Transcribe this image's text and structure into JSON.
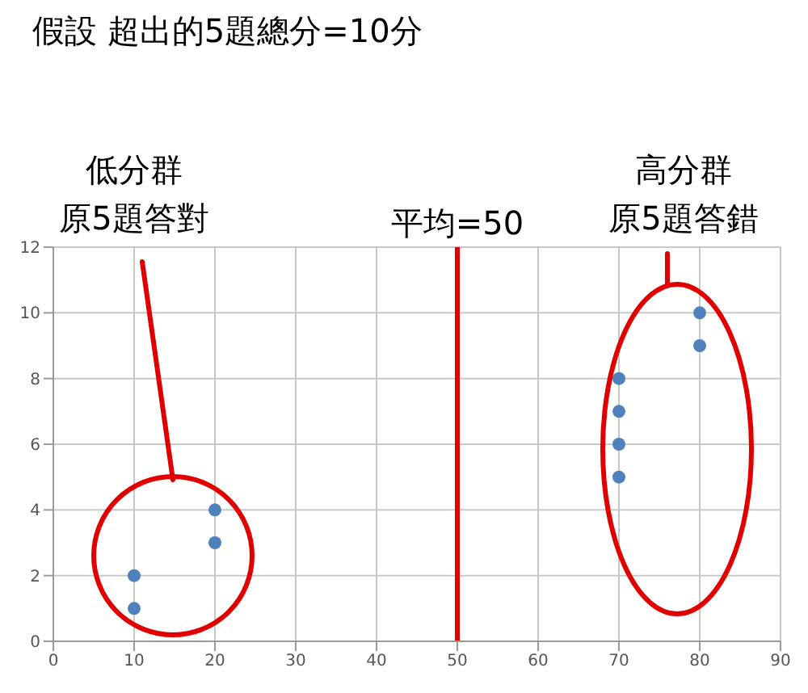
{
  "chart_data": {
    "type": "scatter",
    "title": "假設 超出的5題總分=10分",
    "x": [
      10,
      10,
      20,
      20,
      70,
      70,
      70,
      70,
      80,
      80
    ],
    "values": [
      1,
      2,
      3,
      4,
      5,
      6,
      7,
      8,
      9,
      10
    ],
    "color": "#4f81bd",
    "marker": "circle",
    "xlim": [
      0,
      90
    ],
    "xticks": [
      0,
      10,
      20,
      30,
      40,
      50,
      60,
      70,
      80,
      90
    ],
    "ylim": [
      0,
      12
    ],
    "yticks": [
      0,
      2,
      4,
      6,
      8,
      10,
      12
    ],
    "grid": true,
    "ref_lines": [
      {
        "axis": "x",
        "value": 50,
        "label": "平均=50",
        "color": "#e00000"
      }
    ],
    "annotations": [
      "低分群",
      "原5題答對",
      "高分群",
      "原5題答錯"
    ]
  }
}
